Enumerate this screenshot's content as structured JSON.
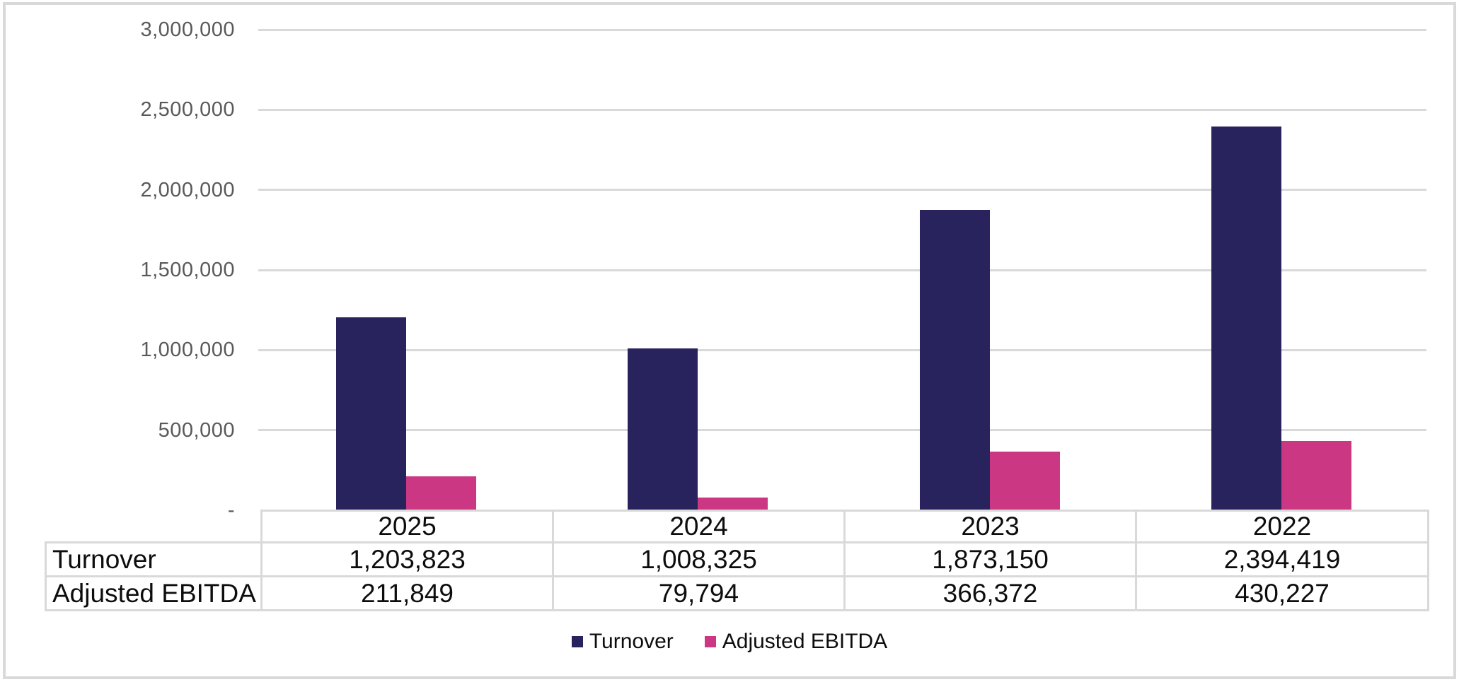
{
  "chart": {
    "background_color": "#FFFFFF",
    "frame_border_color": "#D9D9D9",
    "gridline_color": "#D9D9D9",
    "axis_label_color": "#595959",
    "table_border_color": "#D9D9D9",
    "table_text_color": "#0D0D0D"
  },
  "chart_data": {
    "type": "bar",
    "title": "",
    "xlabel": "",
    "ylabel": "",
    "categories": [
      "2025",
      "2024",
      "2023",
      "2022"
    ],
    "series": [
      {
        "name": "Turnover",
        "color": "#28235C",
        "values": [
          1203823,
          1008325,
          1873150,
          2394419
        ],
        "labels": [
          "1,203,823",
          "1,008,325",
          "1,873,150",
          "2,394,419"
        ]
      },
      {
        "name": "Adjusted EBITDA",
        "color": "#CC3784",
        "values": [
          211849,
          79794,
          366372,
          430227
        ],
        "labels": [
          "211,849",
          "79,794",
          "366,372",
          "430,227"
        ]
      }
    ],
    "ylim": [
      0,
      3000000
    ],
    "grid": true,
    "legend_position": "bottom",
    "y_ticks": [
      {
        "label": "3,000,000",
        "value": 3000000
      },
      {
        "label": "2,500,000",
        "value": 2500000
      },
      {
        "label": "2,000,000",
        "value": 2000000
      },
      {
        "label": "1,500,000",
        "value": 1500000
      },
      {
        "label": "1,000,000",
        "value": 1000000
      },
      {
        "label": "500,000",
        "value": 500000
      },
      {
        "label": "-",
        "value": 0
      }
    ]
  }
}
